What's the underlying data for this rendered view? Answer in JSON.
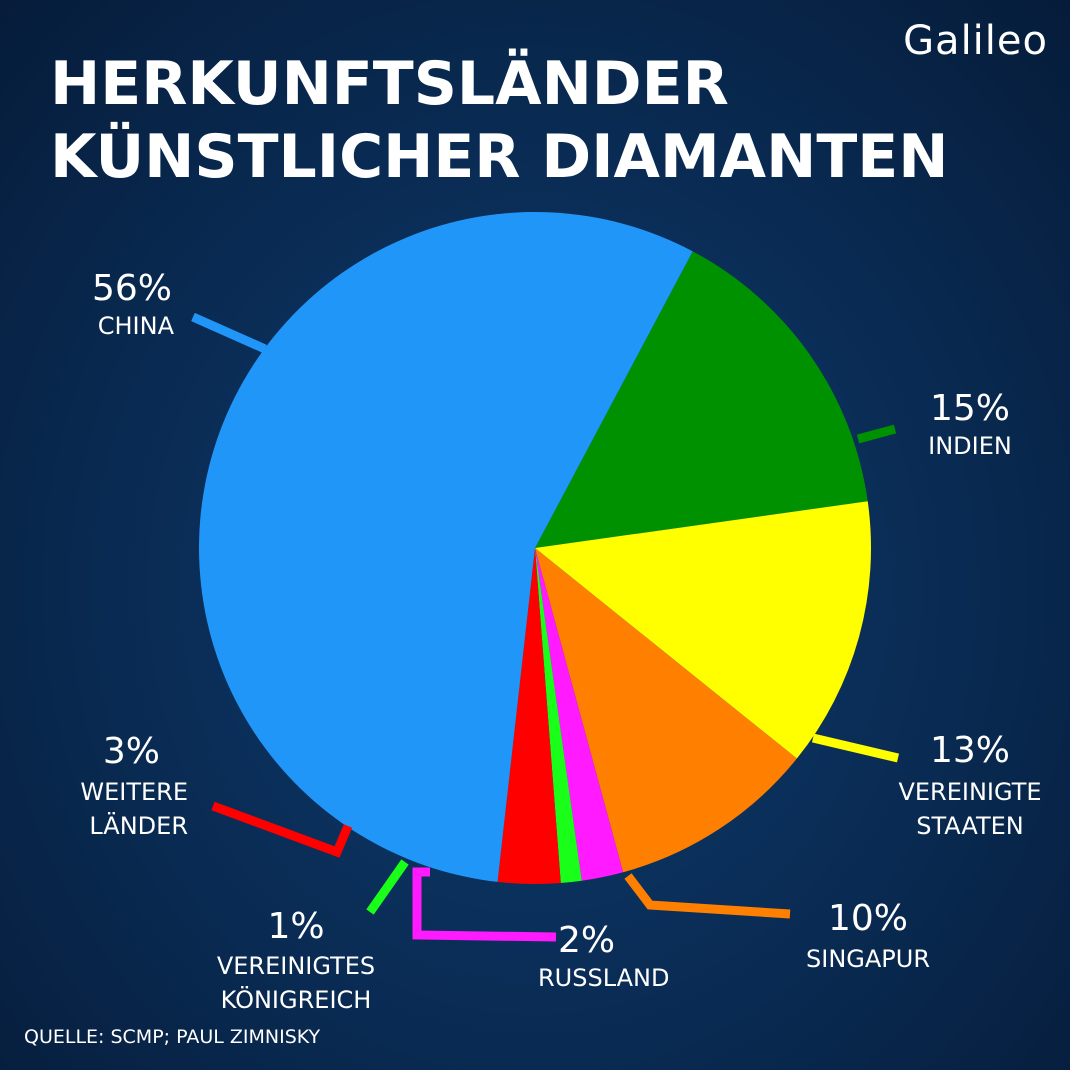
{
  "header": {
    "title_line1": "HERKUNFTSLÄNDER",
    "title_line2": "KÜNSTLICHER DIAMANTEN",
    "logo": "Galileo"
  },
  "footer": {
    "source": "QUELLE: SCMP; PAUL ZIMNISKY"
  },
  "chart_data": {
    "type": "pie",
    "title": "HERKUNFTSLÄNDER KÜNSTLICHER DIAMANTEN",
    "unit": "%",
    "slices": [
      {
        "label_lines": [
          "INDIEN"
        ],
        "value": 15,
        "value_label": "15%",
        "color": "#009100"
      },
      {
        "label_lines": [
          "VEREINIGTE",
          "STAATEN"
        ],
        "value": 13,
        "value_label": "13%",
        "color": "#ffff00"
      },
      {
        "label_lines": [
          "SINGAPUR"
        ],
        "value": 10,
        "value_label": "10%",
        "color": "#ff7f00"
      },
      {
        "label_lines": [
          "RUSSLAND"
        ],
        "value": 2,
        "value_label": "2%",
        "color": "#ff1aff"
      },
      {
        "label_lines": [
          "VEREINIGTES",
          "KÖNIGREICH"
        ],
        "value": 1,
        "value_label": "1%",
        "color": "#1aff1a"
      },
      {
        "label_lines": [
          "WEITERE",
          "LÄNDER"
        ],
        "value": 3,
        "value_label": "3%",
        "color": "#ff0000"
      },
      {
        "label_lines": [
          "CHINA"
        ],
        "value": 56,
        "value_label": "56%",
        "color": "#2196f9"
      }
    ],
    "legend": "none (direct labels)"
  }
}
